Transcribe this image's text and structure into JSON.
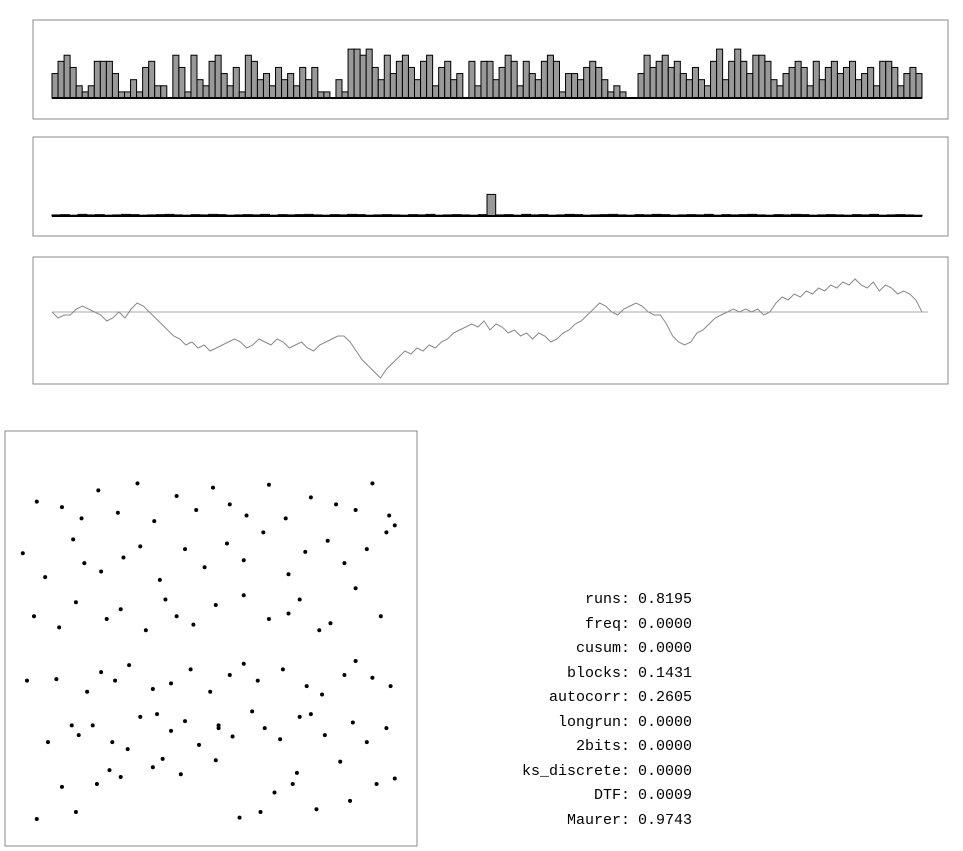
{
  "chart_data": [
    {
      "type": "bar",
      "color": "#999999",
      "ylim": [
        0,
        9
      ],
      "values": [
        4,
        6,
        7,
        5,
        2,
        1,
        2,
        6,
        6,
        6,
        4,
        1,
        1,
        3,
        1,
        5,
        6,
        2,
        2,
        0,
        7,
        5,
        1,
        7,
        3,
        2,
        6,
        7,
        4,
        2,
        5,
        1,
        7,
        6,
        3,
        4,
        2,
        5,
        3,
        4,
        2,
        5,
        3,
        5,
        1,
        1,
        0,
        3,
        1,
        8,
        8,
        7,
        8,
        5,
        3,
        7,
        4,
        6,
        7,
        5,
        3,
        6,
        7,
        2,
        5,
        6,
        3,
        4,
        0,
        6,
        2,
        6,
        6,
        3,
        5,
        7,
        6,
        2,
        6,
        4,
        3,
        6,
        7,
        6,
        1,
        4,
        4,
        3,
        5,
        6,
        5,
        3,
        1,
        2,
        1,
        0,
        0,
        4,
        7,
        5,
        6,
        7,
        5,
        6,
        4,
        3,
        5,
        3,
        2,
        6,
        8,
        3,
        6,
        8,
        6,
        4,
        7,
        7,
        6,
        3,
        2,
        4,
        5,
        6,
        5,
        2,
        6,
        3,
        5,
        6,
        4,
        5,
        6,
        3,
        4,
        5,
        2,
        6,
        6,
        5,
        2,
        4,
        5,
        4
      ]
    },
    {
      "type": "bar",
      "color": "#999999",
      "ylim": [
        0,
        10
      ],
      "values": [
        0.4,
        0.5,
        0.3,
        0.6,
        0.4,
        0.5,
        0.3,
        0.4,
        0.6,
        0.5,
        0.3,
        0.4,
        0.5,
        0.6,
        0.4,
        0.3,
        0.5,
        0.4,
        0.6,
        0.5,
        0.3,
        0.4,
        0.5,
        0.4,
        0.6,
        0.3,
        0.5,
        0.4,
        0.5,
        0.6,
        0.4,
        0.3,
        0.5,
        0.4,
        0.6,
        0.5,
        0.3,
        0.4,
        0.5,
        0.4,
        0.3,
        0.5,
        0.4,
        0.6,
        0.3,
        0.4,
        0.5,
        0.4,
        0.3,
        0.5,
        8,
        0.4,
        0.5,
        0.3,
        0.6,
        0.4,
        0.5,
        0.3,
        0.4,
        0.6,
        0.5,
        0.3,
        0.4,
        0.5,
        0.6,
        0.4,
        0.3,
        0.5,
        0.4,
        0.6,
        0.5,
        0.3,
        0.4,
        0.5,
        0.4,
        0.6,
        0.3,
        0.5,
        0.4,
        0.5,
        0.6,
        0.4,
        0.3,
        0.5,
        0.4,
        0.6,
        0.5,
        0.3,
        0.4,
        0.5,
        0.4,
        0.3,
        0.5,
        0.4,
        0.6,
        0.3,
        0.4,
        0.5,
        0.4,
        0.3
      ]
    },
    {
      "type": "line",
      "color": "#888888",
      "ylim": [
        -24,
        14
      ],
      "values": [
        0,
        -2,
        -1,
        -1,
        1,
        2,
        1,
        0,
        -1,
        -3,
        -2,
        0,
        -2,
        1,
        3,
        2,
        0,
        -2,
        -4,
        -6,
        -8,
        -9,
        -11,
        -10,
        -12,
        -11,
        -13,
        -12,
        -11,
        -10,
        -9,
        -10,
        -12,
        -11,
        -9,
        -10,
        -11,
        -9,
        -10,
        -12,
        -11,
        -10,
        -12,
        -13,
        -11,
        -10,
        -9,
        -8,
        -8,
        -10,
        -13,
        -16,
        -18,
        -20,
        -22,
        -19,
        -17,
        -15,
        -13,
        -14,
        -12,
        -13,
        -11,
        -12,
        -10,
        -9,
        -7,
        -6,
        -5,
        -4,
        -5,
        -3,
        -6,
        -4,
        -5,
        -7,
        -6,
        -8,
        -7,
        -9,
        -7,
        -8,
        -10,
        -9,
        -7,
        -6,
        -4,
        -3,
        -1,
        1,
        3,
        2,
        0,
        -1,
        1,
        2,
        3,
        2,
        0,
        -1,
        -1,
        -4,
        -8,
        -10,
        -11,
        -10,
        -7,
        -6,
        -4,
        -2,
        -1,
        0,
        1,
        0,
        1,
        0,
        1,
        -1,
        0,
        3,
        5,
        4,
        6,
        5,
        7,
        6,
        8,
        7,
        9,
        8,
        10,
        9,
        11,
        9,
        8,
        10,
        7,
        9,
        8,
        6,
        7,
        6,
        4,
        0
      ]
    },
    {
      "type": "scatter",
      "color": "#000000",
      "xlim": [
        0,
        256
      ],
      "ylim": [
        0,
        256
      ],
      "x": [
        12,
        40,
        55,
        30,
        64,
        72,
        95,
        102,
        115,
        140,
        142,
        157,
        172,
        182,
        195,
        198,
        212,
        229,
        236,
        255,
        268,
        20,
        37,
        42,
        52,
        66,
        77,
        86,
        98,
        108,
        118,
        128,
        142,
        152,
        166,
        175,
        186,
        200,
        208,
        218,
        238,
        248,
        262,
        5,
        26,
        48,
        58,
        68,
        78,
        95,
        108,
        122,
        136,
        150,
        160,
        170,
        188,
        205,
        216,
        232,
        240,
        252,
        265,
        10,
        28,
        40,
        62,
        72,
        90,
        104,
        112,
        124,
        140,
        160,
        178,
        192,
        200,
        214,
        222,
        240,
        258,
        2,
        18,
        38,
        46,
        58,
        74,
        86,
        100,
        118,
        132,
        148,
        160,
        174,
        192,
        204,
        220,
        232,
        248,
        262,
        12,
        30,
        44,
        56,
        70,
        84,
        96,
        112,
        126,
        138,
        150,
        162,
        178,
        190,
        208,
        226,
        240,
        252,
        264,
        268
      ],
      "y": [
        5,
        10,
        30,
        28,
        40,
        35,
        42,
        48,
        37,
        47,
        70,
        6,
        10,
        24,
        30,
        38,
        12,
        46,
        18,
        30,
        34,
        60,
        72,
        65,
        72,
        60,
        55,
        78,
        80,
        68,
        75,
        58,
        72,
        64,
        82,
        70,
        62,
        78,
        80,
        65,
        74,
        60,
        70,
        104,
        105,
        96,
        110,
        104,
        115,
        98,
        102,
        112,
        96,
        108,
        116,
        104,
        112,
        100,
        94,
        108,
        118,
        106,
        100,
        150,
        142,
        160,
        148,
        155,
        140,
        162,
        150,
        144,
        158,
        165,
        148,
        152,
        162,
        140,
        145,
        170,
        150,
        195,
        178,
        205,
        188,
        182,
        192,
        200,
        176,
        198,
        185,
        202,
        190,
        210,
        180,
        196,
        204,
        188,
        198,
        210,
        232,
        228,
        220,
        240,
        224,
        245,
        218,
        236,
        226,
        242,
        230,
        222,
        244,
        220,
        235,
        230,
        226,
        245,
        222,
        215
      ]
    }
  ],
  "stats": [
    {
      "name": "runs:",
      "value": "0.8195"
    },
    {
      "name": "freq:",
      "value": "0.0000"
    },
    {
      "name": "cusum:",
      "value": "0.0000"
    },
    {
      "name": "blocks:",
      "value": "0.1431"
    },
    {
      "name": "autocorr:",
      "value": "0.2605"
    },
    {
      "name": "longrun:",
      "value": "0.0000"
    },
    {
      "name": "2bits:",
      "value": "0.0000"
    },
    {
      "name": "ks_discrete:",
      "value": "0.0000"
    },
    {
      "name": "DTF:",
      "value": "0.0009"
    },
    {
      "name": "Maurer:",
      "value": "0.9743"
    }
  ]
}
